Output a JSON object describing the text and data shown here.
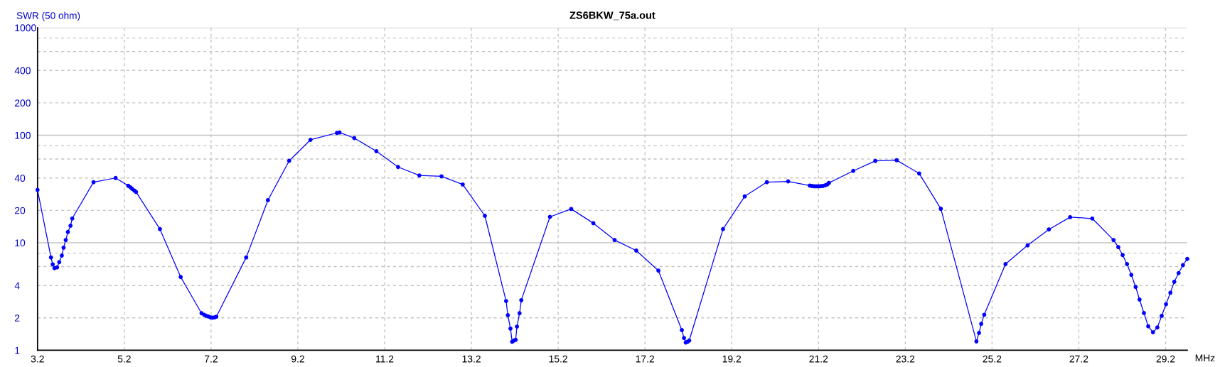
{
  "chart_data": {
    "type": "line",
    "title": "ZS6BKW_75a.out",
    "xlabel": "MHz",
    "ylabel": "SWR (50 ohm)",
    "log": "y",
    "grid": true,
    "marker": "circle",
    "line_style": "solid",
    "xlim": [
      3.2,
      29.7
    ],
    "ylim": [
      1,
      1000
    ],
    "xticks": [
      3.2,
      5.2,
      7.2,
      9.2,
      11.2,
      13.2,
      15.2,
      17.2,
      19.2,
      21.2,
      23.2,
      25.2,
      27.2,
      29.2
    ],
    "yticks": [
      1,
      2,
      4,
      {
        "value": 6,
        "label": null
      },
      {
        "value": 8,
        "label": null
      },
      10,
      20,
      40,
      {
        "value": 60,
        "label": null
      },
      {
        "value": 80,
        "label": null
      },
      100,
      200,
      400,
      {
        "value": 600,
        "label": null
      },
      {
        "value": 800,
        "label": null
      },
      1000
    ],
    "series": [
      {
        "color": "#0000ff",
        "x": [
          3.2,
          3.51,
          3.55,
          3.59,
          3.65,
          3.7,
          3.76,
          3.8,
          3.85,
          3.9,
          3.96,
          4.0,
          4.49,
          5.0,
          5.29,
          5.34,
          5.38,
          5.43,
          5.47,
          6.02,
          6.5,
          6.98,
          7.04,
          7.09,
          7.14,
          7.19,
          7.23,
          7.28,
          7.32,
          8.01,
          8.51,
          9.0,
          9.49,
          10.1,
          10.16,
          10.5,
          11.01,
          11.51,
          12.0,
          12.51,
          13.0,
          13.51,
          14.0,
          14.04,
          14.1,
          14.14,
          14.18,
          14.22,
          14.25,
          14.31,
          14.35,
          15.01,
          15.5,
          16.01,
          16.5,
          17.0,
          17.51,
          18.05,
          18.1,
          18.14,
          18.18,
          18.22,
          19.0,
          19.5,
          20.01,
          20.5,
          21.0,
          21.05,
          21.1,
          21.15,
          21.2,
          21.25,
          21.3,
          21.35,
          21.4,
          21.44,
          22.0,
          22.51,
          23.0,
          23.52,
          24.02,
          24.84,
          24.9,
          24.95,
          25.02,
          25.51,
          26.02,
          26.51,
          27.0,
          27.51,
          28.0,
          28.11,
          28.21,
          28.31,
          28.41,
          28.51,
          28.6,
          28.7,
          28.8,
          28.91,
          29.01,
          29.11,
          29.21,
          29.31,
          29.4,
          29.5,
          29.6,
          29.7
        ],
        "values": [
          31,
          7.3,
          6.3,
          5.8,
          5.9,
          6.6,
          7.6,
          9.0,
          10.6,
          12.6,
          14.4,
          16.8,
          36.6,
          40,
          33.9,
          32.8,
          31.7,
          30.6,
          29.7,
          13.4,
          4.8,
          2.21,
          2.14,
          2.09,
          2.06,
          2.02,
          2.01,
          2.02,
          2.05,
          7.3,
          24.9,
          57.8,
          90.6,
          105,
          106,
          94,
          71,
          50.6,
          42.3,
          41.5,
          34.8,
          17.8,
          2.87,
          2.12,
          1.59,
          1.2,
          1.23,
          1.25,
          1.66,
          2.21,
          2.92,
          17.4,
          20.6,
          15.2,
          10.6,
          8.45,
          5.5,
          1.54,
          1.3,
          1.18,
          1.2,
          1.23,
          13.4,
          27,
          36.6,
          37.2,
          34,
          33.7,
          33.5,
          33.5,
          33.5,
          33.6,
          33.8,
          34.2,
          34.8,
          36,
          46.6,
          57.7,
          58.6,
          44.1,
          20.7,
          1.21,
          1.45,
          1.76,
          2.14,
          6.33,
          9.46,
          13.3,
          17.3,
          16.8,
          10.6,
          9.11,
          7.68,
          6.33,
          5.02,
          3.88,
          2.96,
          2.22,
          1.67,
          1.47,
          1.63,
          2.09,
          2.68,
          3.43,
          4.33,
          5.22,
          6.19,
          7.07
        ]
      }
    ]
  }
}
